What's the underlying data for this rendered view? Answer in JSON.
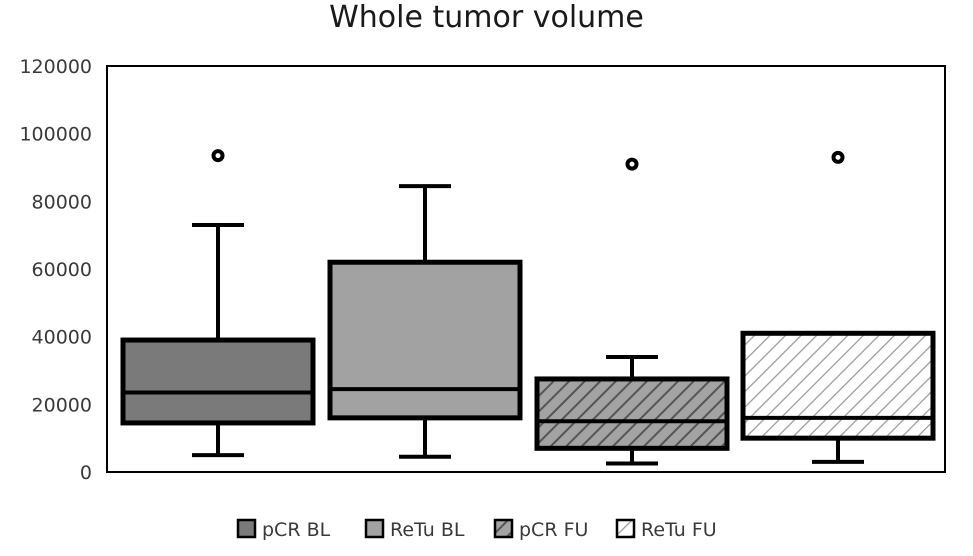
{
  "chart_data": {
    "type": "box",
    "title": "Whole tumor volume",
    "xlabel": "",
    "ylabel": "",
    "ylim": [
      0,
      120000
    ],
    "yticks": [
      0,
      20000,
      40000,
      60000,
      80000,
      100000,
      120000
    ],
    "grid": false,
    "legend_position": "bottom",
    "series": [
      {
        "name": "pCR BL",
        "whisker_low": 5000,
        "q1": 14500,
        "median": 23500,
        "q3": 39000,
        "whisker_high": 73000,
        "outliers": [
          93500
        ],
        "fill": "#7a7a7a",
        "pattern": "none"
      },
      {
        "name": "ReTu BL",
        "whisker_low": 4500,
        "q1": 16000,
        "median": 24500,
        "q3": 62000,
        "whisker_high": 84500,
        "outliers": [],
        "fill": "#a2a2a2",
        "pattern": "none"
      },
      {
        "name": "pCR FU",
        "whisker_low": 2500,
        "q1": 7000,
        "median": 15000,
        "q3": 27500,
        "whisker_high": 34000,
        "outliers": [
          91000
        ],
        "fill": "#a3a3a3",
        "pattern": "diagonal-dark"
      },
      {
        "name": "ReTu FU",
        "whisker_low": 3000,
        "q1": 10000,
        "median": 16000,
        "q3": 41000,
        "whisker_high": 41000,
        "outliers": [
          93000
        ],
        "fill": "#ffffff",
        "pattern": "diagonal-light"
      }
    ]
  }
}
